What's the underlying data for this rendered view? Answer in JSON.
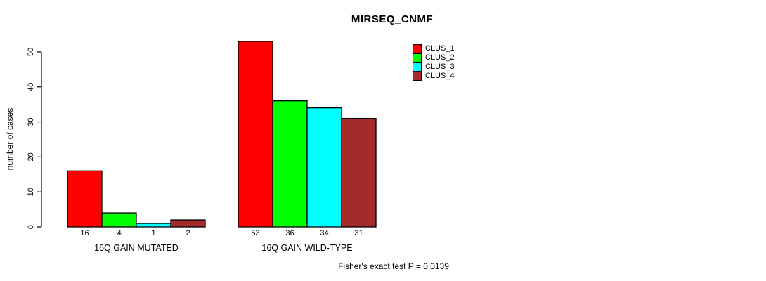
{
  "chart_data": {
    "type": "bar",
    "title": "MIRSEQ_CNMF",
    "ylabel": "number of cases",
    "ylim": [
      0,
      50
    ],
    "yticks": [
      0,
      10,
      20,
      30,
      40,
      50
    ],
    "categories": [
      "16Q GAIN MUTATED",
      "16Q GAIN WILD-TYPE"
    ],
    "groups": [
      {
        "label": "16Q GAIN MUTATED",
        "values": [
          16,
          4,
          1,
          2
        ]
      },
      {
        "label": "16Q GAIN WILD-TYPE",
        "values": [
          53,
          36,
          34,
          31
        ]
      }
    ],
    "series": [
      {
        "name": "CLUS_1",
        "color": "#ff0000"
      },
      {
        "name": "CLUS_2",
        "color": "#00ff00"
      },
      {
        "name": "CLUS_3",
        "color": "#00ffff"
      },
      {
        "name": "CLUS_4",
        "color": "#a52a2a"
      }
    ],
    "legend_position": "top-right",
    "grid": false,
    "bar_border_color": "#000000",
    "annotation": "Fisher's exact test P = 0.0139"
  }
}
